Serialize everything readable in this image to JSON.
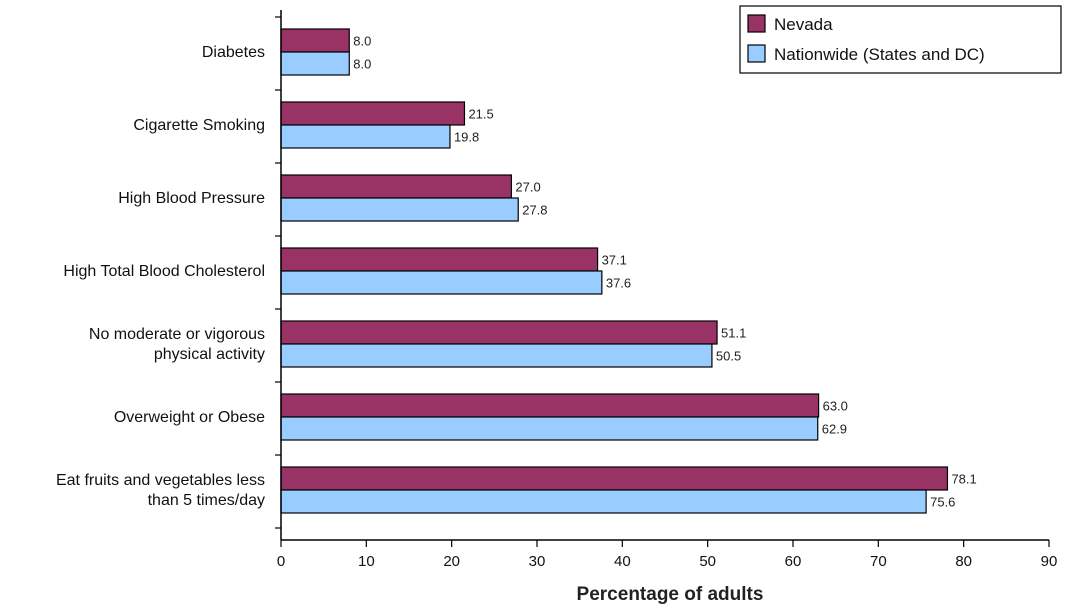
{
  "chart_data": {
    "type": "bar",
    "orientation": "horizontal",
    "categories": [
      [
        "Diabetes"
      ],
      [
        "Cigarette Smoking"
      ],
      [
        "High Blood Pressure"
      ],
      [
        "High Total Blood Cholesterol"
      ],
      [
        "No moderate or vigorous",
        "physical activity"
      ],
      [
        "Overweight or Obese"
      ],
      [
        "Eat fruits and vegetables less",
        "than 5 times/day"
      ]
    ],
    "series": [
      {
        "name": "Nevada",
        "color": "#993366",
        "values": [
          8.0,
          21.5,
          27.0,
          37.1,
          51.1,
          63.0,
          78.1
        ],
        "labels": [
          "8.0",
          "21.5",
          "27.0",
          "37.1",
          "51.1",
          "63.0",
          "78.1"
        ]
      },
      {
        "name": "Nationwide (States and DC)",
        "color": "#99CCFF",
        "values": [
          8.0,
          19.8,
          27.8,
          37.6,
          50.5,
          62.9,
          75.6
        ],
        "labels": [
          "8.0",
          "19.8",
          "27.8",
          "37.6",
          "50.5",
          "62.9",
          "75.6"
        ]
      }
    ],
    "xlabel": "Percentage of adults",
    "xlim": [
      0,
      90
    ],
    "xticks": [
      0,
      10,
      20,
      30,
      40,
      50,
      60,
      70,
      80,
      90
    ],
    "grid": false,
    "legend": "top-right"
  }
}
